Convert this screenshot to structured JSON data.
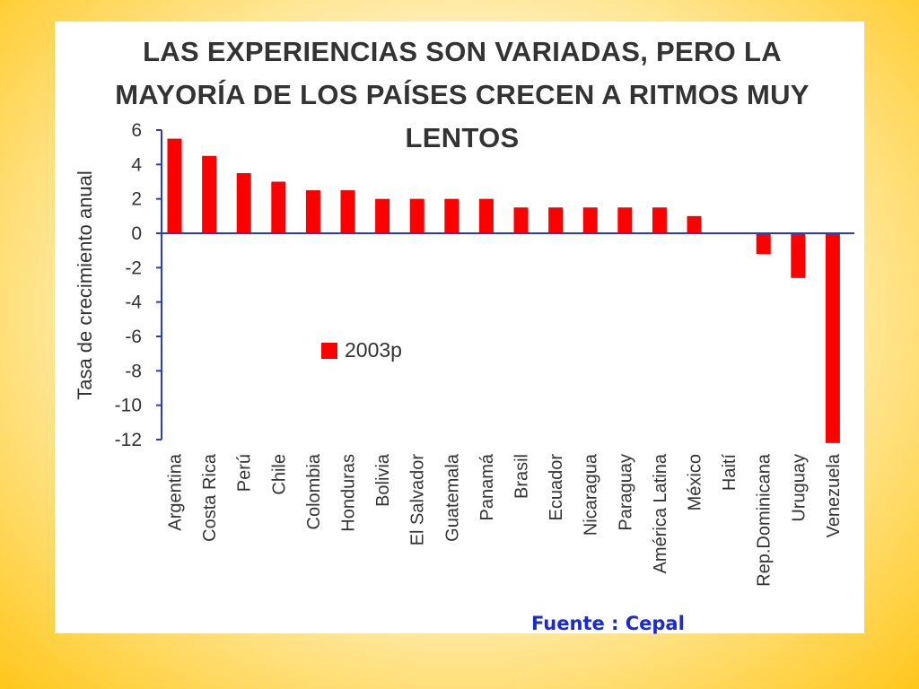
{
  "colors": {
    "bar": "#ff0000",
    "axis": "#2b3cb8",
    "text": "#333333",
    "source": "#1a2bd6"
  },
  "slide": {
    "source_note": "Fuente : Cepal"
  },
  "chart_data": {
    "type": "bar",
    "title": "LAS EXPERIENCIAS SON VARIADAS, PERO LA MAYORÍA DE LOS PAÍSES CRECEN A RITMOS MUY LENTOS",
    "xlabel": "",
    "ylabel": "Tasa de crecimiento anual",
    "ylim": [
      -12,
      6
    ],
    "yticks": [
      6,
      4,
      2,
      0,
      -2,
      -4,
      -6,
      -8,
      -10,
      -12
    ],
    "grid": false,
    "legend_position": "middle-left",
    "categories": [
      "Argentina",
      "Costa Rica",
      "Perú",
      "Chile",
      "Colombia",
      "Honduras",
      "Bolivia",
      "El Salvador",
      "Guatemala",
      "Panamá",
      "Brasil",
      "Ecuador",
      "Nicaragua",
      "Paraguay",
      "América Latina",
      "México",
      "Haití",
      "Rep.Dominicana",
      "Uruguay",
      "Venezuela"
    ],
    "series": [
      {
        "name": "2003p",
        "values": [
          5.5,
          4.5,
          3.5,
          3.0,
          2.5,
          2.5,
          2.0,
          2.0,
          2.0,
          2.0,
          1.5,
          1.5,
          1.5,
          1.5,
          1.5,
          1.0,
          0.0,
          -1.2,
          -2.6,
          -12.2
        ]
      }
    ]
  }
}
